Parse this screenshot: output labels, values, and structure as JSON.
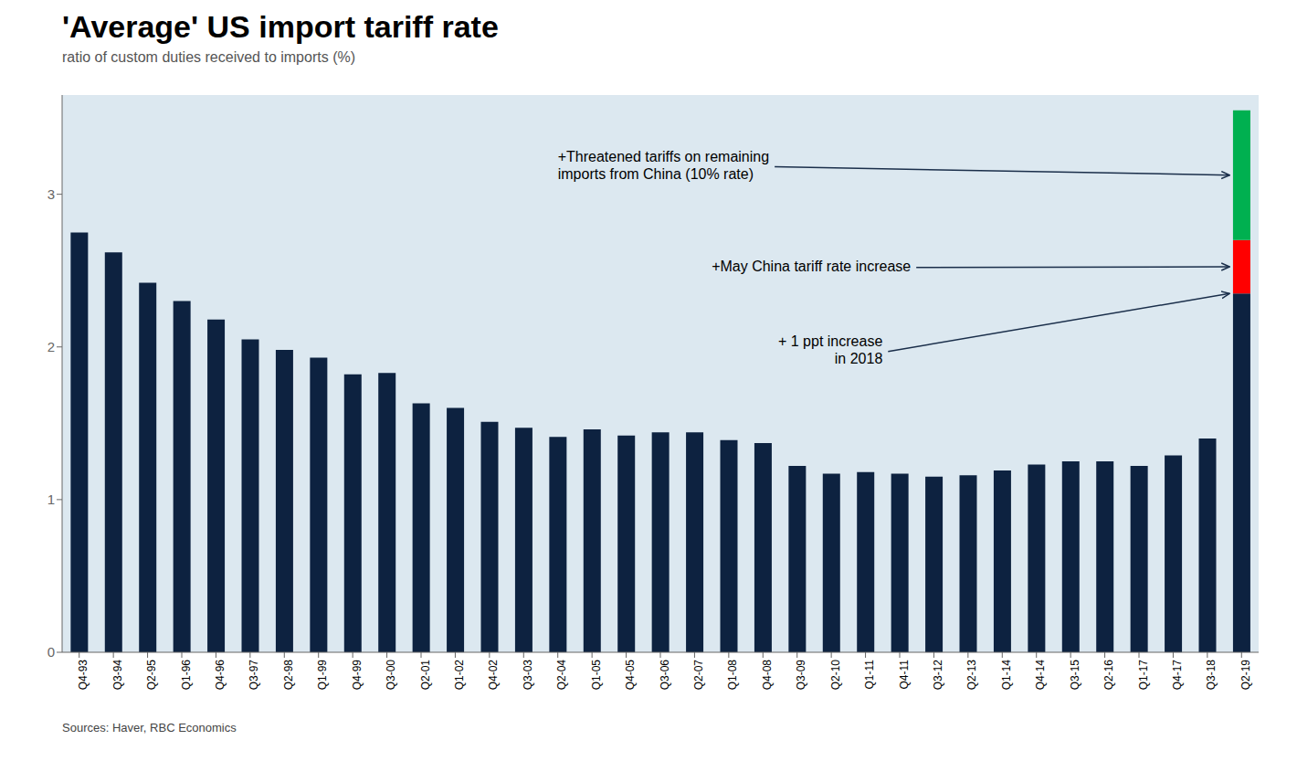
{
  "chart_data": {
    "type": "bar",
    "title": "'Average' US import tariff rate",
    "subtitle": "ratio of custom duties received to imports (%)",
    "source": "Sources: Haver, RBC Economics",
    "annotations": [
      "+ 1 ppt increase\nin 2018",
      "+May China tariff rate increase",
      "+Threatened tariffs on remaining\nimports from China (10% rate)"
    ],
    "categories": [
      "Q4-93",
      "Q3-94",
      "Q2-95",
      "Q1-96",
      "Q4-96",
      "Q3-97",
      "Q2-98",
      "Q1-99",
      "Q4-99",
      "Q3-00",
      "Q2-01",
      "Q1-02",
      "Q4-02",
      "Q3-03",
      "Q2-04",
      "Q1-05",
      "Q4-05",
      "Q3-06",
      "Q2-07",
      "Q1-08",
      "Q4-08",
      "Q3-09",
      "Q2-10",
      "Q1-11",
      "Q4-11",
      "Q3-12",
      "Q2-13",
      "Q1-14",
      "Q4-14",
      "Q3-15",
      "Q2-16",
      "Q1-17",
      "Q4-17",
      "Q3-18",
      "Q2-19"
    ],
    "series": [
      {
        "color": "#0d2240",
        "values": [
          2.75,
          2.62,
          2.42,
          2.3,
          2.18,
          2.05,
          1.98,
          1.93,
          1.82,
          1.83,
          1.63,
          1.6,
          1.51,
          1.47,
          1.41,
          1.46,
          1.42,
          1.44,
          1.44,
          1.39,
          1.37,
          1.22,
          1.17,
          1.18,
          1.17,
          1.15,
          1.16,
          1.19,
          1.23,
          1.25,
          1.25,
          1.22,
          1.29,
          1.4,
          2.35
        ]
      },
      {
        "color": "red",
        "values": [
          null,
          null,
          null,
          null,
          null,
          null,
          null,
          null,
          null,
          null,
          null,
          null,
          null,
          null,
          null,
          null,
          null,
          null,
          null,
          null,
          null,
          null,
          null,
          null,
          null,
          null,
          null,
          null,
          null,
          null,
          null,
          null,
          null,
          null,
          0.35
        ]
      },
      {
        "color": "#00b050",
        "values": [
          null,
          null,
          null,
          null,
          null,
          null,
          null,
          null,
          null,
          null,
          null,
          null,
          null,
          null,
          null,
          null,
          null,
          null,
          null,
          null,
          null,
          null,
          null,
          null,
          null,
          null,
          null,
          null,
          null,
          null,
          null,
          null,
          null,
          null,
          0.85
        ]
      }
    ],
    "stacked": true,
    "ylim": [
      0,
      3.65
    ],
    "yticks": [
      0,
      1,
      2,
      3
    ],
    "grid": false
  }
}
